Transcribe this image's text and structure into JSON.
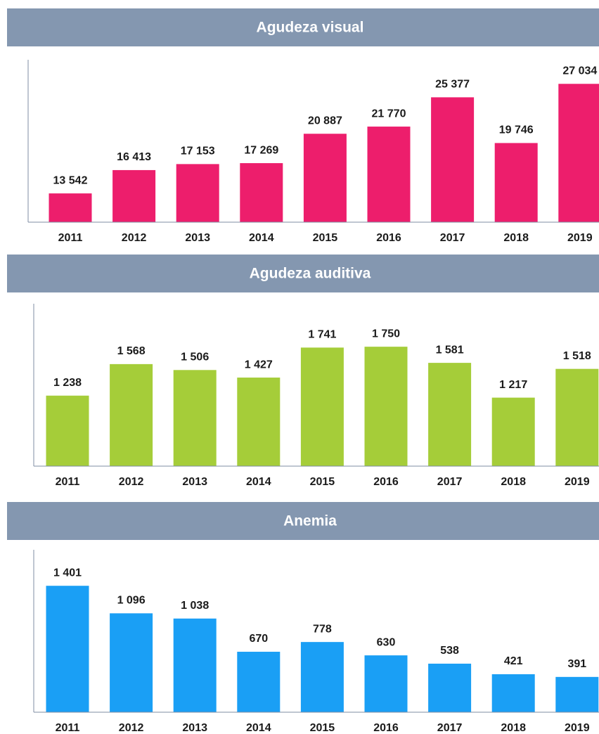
{
  "chart_data": [
    {
      "type": "bar",
      "title": "Agudeza visual",
      "categories": [
        "2011",
        "2012",
        "2013",
        "2014",
        "2015",
        "2016",
        "2017",
        "2018",
        "2019"
      ],
      "values": [
        13542,
        16413,
        17153,
        17269,
        20887,
        21770,
        25377,
        19746,
        27034
      ],
      "value_labels": [
        "13 542",
        "16 413",
        "17 153",
        "17 269",
        "20 887",
        "21 770",
        "25 377",
        "19 746",
        "27 034"
      ],
      "color": "#ed1e6c",
      "ylim": [
        10000,
        30000
      ]
    },
    {
      "type": "bar",
      "title": "Agudeza auditiva",
      "categories": [
        "2011",
        "2012",
        "2013",
        "2014",
        "2015",
        "2016",
        "2017",
        "2018",
        "2019"
      ],
      "values": [
        1238,
        1568,
        1506,
        1427,
        1741,
        1750,
        1581,
        1217,
        1518
      ],
      "value_labels": [
        "1 238",
        "1 568",
        "1 506",
        "1 427",
        "1 741",
        "1 750",
        "1 581",
        "1 217",
        "1 518"
      ],
      "color": "#a5cd39",
      "ylim": [
        500,
        2200
      ]
    },
    {
      "type": "bar",
      "title": "Anemia",
      "categories": [
        "2011",
        "2012",
        "2013",
        "2014",
        "2015",
        "2016",
        "2017",
        "2018",
        "2019"
      ],
      "values": [
        1401,
        1096,
        1038,
        670,
        778,
        630,
        538,
        421,
        391
      ],
      "value_labels": [
        "1 401",
        "1 096",
        "1 038",
        "670",
        "778",
        "630",
        "538",
        "421",
        "391"
      ],
      "color": "#1a9ff5",
      "ylim": [
        0,
        1800
      ]
    }
  ]
}
